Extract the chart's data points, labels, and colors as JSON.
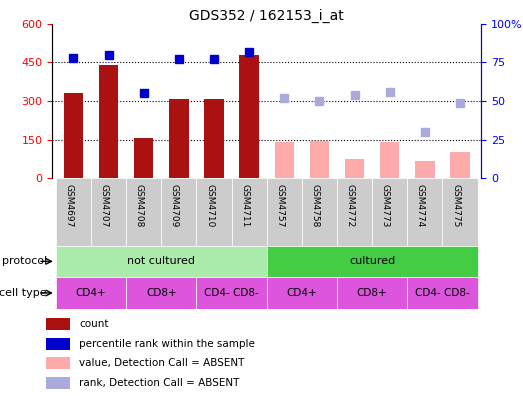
{
  "title": "GDS352 / 162153_i_at",
  "samples": [
    "GSM4697",
    "GSM4707",
    "GSM4708",
    "GSM4709",
    "GSM4710",
    "GSM4711",
    "GSM4757",
    "GSM4758",
    "GSM4772",
    "GSM4773",
    "GSM4774",
    "GSM4775"
  ],
  "count_values": [
    330,
    440,
    155,
    308,
    308,
    480,
    null,
    null,
    null,
    null,
    null,
    null
  ],
  "rank_values": [
    78,
    80,
    55,
    77,
    77,
    82,
    null,
    null,
    null,
    null,
    null,
    null
  ],
  "absent_count_values": [
    null,
    null,
    null,
    null,
    null,
    null,
    140,
    143,
    73,
    140,
    68,
    100
  ],
  "absent_rank_values": [
    null,
    null,
    null,
    null,
    null,
    null,
    52,
    50,
    54,
    56,
    30,
    49
  ],
  "ylim_left": [
    0,
    600
  ],
  "ylim_right": [
    0,
    100
  ],
  "yticks_left": [
    0,
    150,
    300,
    450,
    600
  ],
  "ytick_labels_left": [
    "0",
    "150",
    "300",
    "450",
    "600"
  ],
  "yticks_right": [
    0,
    25,
    50,
    75,
    100
  ],
  "ytick_labels_right": [
    "0",
    "25",
    "50",
    "75",
    "100%"
  ],
  "bar_color_present": "#AA1111",
  "bar_color_absent": "#FFAAAA",
  "dot_color_present": "#0000CC",
  "dot_color_absent": "#AAAADD",
  "protocol_not_cultured_color": "#AAEAAA",
  "protocol_cultured_color": "#44CC44",
  "cell_type_color": "#DD55DD",
  "protocol_labels": [
    "not cultured",
    "cultured"
  ],
  "cell_type_labels": [
    "CD4+",
    "CD8+",
    "CD4- CD8-",
    "CD4+",
    "CD8+",
    "CD4- CD8-"
  ],
  "legend_items": [
    {
      "label": "count",
      "color": "#AA1111",
      "type": "square"
    },
    {
      "label": "percentile rank within the sample",
      "color": "#0000CC",
      "type": "square"
    },
    {
      "label": "value, Detection Call = ABSENT",
      "color": "#FFAAAA",
      "type": "square"
    },
    {
      "label": "rank, Detection Call = ABSENT",
      "color": "#AAAADD",
      "type": "square"
    }
  ],
  "xtick_bg_color": "#CCCCCC",
  "grid_color": "black",
  "grid_linestyle": ":"
}
